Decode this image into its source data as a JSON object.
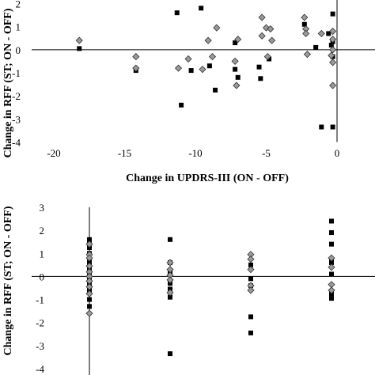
{
  "chart_data": [
    {
      "type": "scatter",
      "xlabel": "Change in UPDRS-III (ON - OFF)",
      "ylabel": "Change in RFF (ST; ON - OFF)",
      "xlim": [
        -20,
        0.6
      ],
      "ylim": [
        -4,
        2
      ],
      "xticks": [
        -20,
        -15,
        -10,
        -5,
        0
      ],
      "yticks": [
        -4,
        -3,
        -2,
        -1,
        0,
        1,
        2
      ],
      "xtick_labels": [
        "-20",
        "-15",
        "-10",
        "-5",
        "0"
      ],
      "ytick_labels": [
        "-4",
        "-3",
        "-2",
        "-1",
        "0",
        "1",
        "2"
      ],
      "series": [
        {
          "marker": "square",
          "color": "#000000",
          "points": [
            [
              -18.2,
              0.05
            ],
            [
              -14.2,
              -0.9
            ],
            [
              -11.3,
              1.6
            ],
            [
              -11.0,
              -2.4
            ],
            [
              -10.3,
              -0.9
            ],
            [
              -9.6,
              1.8
            ],
            [
              -9.0,
              -0.7
            ],
            [
              -8.6,
              -1.75
            ],
            [
              -7.2,
              0.3
            ],
            [
              -7.2,
              -0.85
            ],
            [
              -7.0,
              -1.2
            ],
            [
              -5.5,
              -0.75
            ],
            [
              -5.4,
              -1.25
            ],
            [
              -4.8,
              -0.4
            ],
            [
              -2.3,
              1.1
            ],
            [
              -1.5,
              0.1
            ],
            [
              -1.1,
              -3.35
            ],
            [
              -0.6,
              0.7
            ],
            [
              -0.4,
              0.2
            ],
            [
              -0.3,
              1.55
            ],
            [
              -0.3,
              0.35
            ],
            [
              -0.3,
              -0.3
            ],
            [
              -0.3,
              -3.35
            ]
          ]
        },
        {
          "marker": "diamond",
          "color": "#9a9a9a",
          "points": [
            [
              -18.2,
              0.4
            ],
            [
              -14.2,
              -0.3
            ],
            [
              -14.2,
              -0.8
            ],
            [
              -11.2,
              -0.8
            ],
            [
              -10.5,
              -0.4
            ],
            [
              -9.5,
              -0.85
            ],
            [
              -9.1,
              0.4
            ],
            [
              -8.8,
              -0.3
            ],
            [
              -8.5,
              0.95
            ],
            [
              -7.2,
              -0.5
            ],
            [
              -7.1,
              -1.55
            ],
            [
              -7.0,
              0.45
            ],
            [
              -5.3,
              1.4
            ],
            [
              -5.3,
              0.6
            ],
            [
              -5.0,
              0.95
            ],
            [
              -4.9,
              -0.3
            ],
            [
              -4.7,
              0.9
            ],
            [
              -4.6,
              0.4
            ],
            [
              -2.3,
              1.4
            ],
            [
              -2.2,
              0.9
            ],
            [
              -2.2,
              0.7
            ],
            [
              -2.1,
              -0.2
            ],
            [
              -1.1,
              0.7
            ],
            [
              -0.4,
              -0.25
            ],
            [
              -0.3,
              0.8
            ],
            [
              -0.3,
              0.45
            ],
            [
              -0.3,
              0.0
            ],
            [
              -0.3,
              -0.55
            ],
            [
              -0.3,
              -1.55
            ]
          ]
        }
      ]
    },
    {
      "type": "scatter",
      "xlabel": "",
      "ylabel": "Change in RFF (ST; ON - OFF)",
      "xlim": [
        -1.5,
        14
      ],
      "ylim": [
        -4,
        3
      ],
      "yticks": [
        -4,
        -3,
        -2,
        -1,
        0,
        1,
        2,
        3
      ],
      "ytick_labels": [
        "-4",
        "-3",
        "-2",
        "-1",
        "0",
        "1",
        "2",
        "3"
      ],
      "series": [
        {
          "marker": "square",
          "color": "#000000",
          "points": [
            [
              0,
              1.6
            ],
            [
              0,
              1.45
            ],
            [
              0,
              1.25
            ],
            [
              0,
              1.0
            ],
            [
              0,
              0.7
            ],
            [
              0,
              0.5
            ],
            [
              0,
              0.3
            ],
            [
              0,
              0.1
            ],
            [
              0,
              -0.1
            ],
            [
              0,
              -0.3
            ],
            [
              0,
              -0.6
            ],
            [
              0,
              -1.0
            ],
            [
              0,
              -1.3
            ],
            [
              4,
              1.6
            ],
            [
              4,
              0.6
            ],
            [
              4,
              0.15
            ],
            [
              4,
              -0.3
            ],
            [
              4,
              -0.55
            ],
            [
              4,
              -0.9
            ],
            [
              4,
              -3.35
            ],
            [
              8,
              0.5
            ],
            [
              8,
              -0.1
            ],
            [
              8,
              -0.4
            ],
            [
              8,
              -1.75
            ],
            [
              8,
              -2.45
            ],
            [
              12,
              2.4
            ],
            [
              12,
              1.9
            ],
            [
              12,
              1.4
            ],
            [
              12,
              0.75
            ],
            [
              12,
              0.6
            ],
            [
              12,
              0.1
            ],
            [
              12,
              -0.75
            ],
            [
              12,
              -0.95
            ]
          ]
        },
        {
          "marker": "diamond",
          "color": "#9a9a9a",
          "points": [
            [
              0,
              1.4
            ],
            [
              0,
              0.95
            ],
            [
              0,
              0.8
            ],
            [
              0,
              0.45
            ],
            [
              0,
              0.2
            ],
            [
              0,
              0.0
            ],
            [
              0,
              -0.2
            ],
            [
              0,
              -0.45
            ],
            [
              0,
              -0.75
            ],
            [
              0,
              -1.6
            ],
            [
              4,
              0.6
            ],
            [
              4,
              0.3
            ],
            [
              4,
              0.05
            ],
            [
              4,
              -0.15
            ],
            [
              4,
              -0.7
            ],
            [
              8,
              0.95
            ],
            [
              8,
              0.75
            ],
            [
              8,
              0.3
            ],
            [
              8,
              -0.4
            ],
            [
              8,
              -0.6
            ],
            [
              12,
              0.8
            ],
            [
              12,
              0.4
            ],
            [
              12,
              -0.35
            ],
            [
              12,
              -0.6
            ]
          ]
        }
      ]
    }
  ]
}
